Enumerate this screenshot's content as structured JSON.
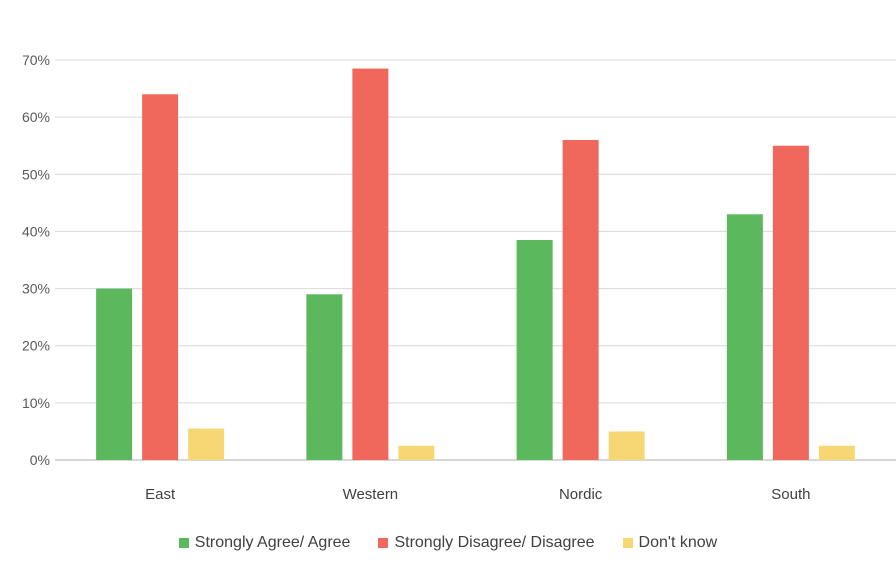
{
  "chart_data": {
    "type": "bar",
    "title": "",
    "xlabel": "",
    "ylabel": "",
    "categories": [
      "East",
      "Western",
      "Nordic",
      "South"
    ],
    "ylim": [
      0,
      70
    ],
    "yticks": [
      "0%",
      "10%",
      "20%",
      "30%",
      "40%",
      "50%",
      "60%",
      "70%"
    ],
    "grid": true,
    "legend_position": "bottom",
    "series": [
      {
        "name": "Strongly Agree/ Agree",
        "color": "#5cb85c",
        "values": [
          30,
          29,
          38.5,
          43
        ]
      },
      {
        "name": "Strongly Disagree/ Disagree",
        "color": "#f0675c",
        "values": [
          64,
          68.5,
          56,
          55
        ]
      },
      {
        "name": "Don't know",
        "color": "#f7d774",
        "values": [
          5.5,
          2.5,
          5,
          2.5
        ]
      }
    ]
  }
}
